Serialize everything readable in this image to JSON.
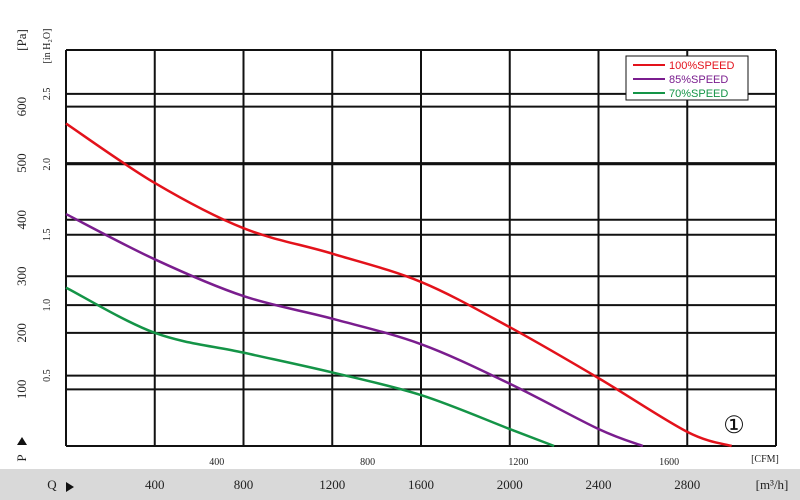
{
  "chart_data": {
    "type": "line",
    "x_primary": {
      "unit": "[m³/h]",
      "prefix_label": "Q",
      "range": [
        0,
        3200
      ],
      "ticks": [
        400,
        800,
        1200,
        1600,
        2000,
        2400,
        2800
      ]
    },
    "x_secondary": {
      "unit": "[CFM]",
      "ticks": [
        400,
        800,
        1200,
        1600
      ]
    },
    "y_primary": {
      "unit": "[Pa]",
      "prefix_label": "P",
      "range": [
        0,
        700
      ],
      "ticks": [
        100,
        200,
        300,
        400,
        500,
        600
      ]
    },
    "y_secondary": {
      "unit": "[in H₂O]",
      "ticks": [
        "0.5",
        "1.0",
        "1.5",
        "2.0",
        "2.5"
      ],
      "tick_values_pa": [
        124.5,
        249,
        373.5,
        498,
        622.5
      ]
    },
    "grid": true,
    "legend_position": "top-right",
    "series": [
      {
        "name": "100%SPEED",
        "color": "#e3121b",
        "x": [
          0,
          400,
          800,
          1200,
          1600,
          2000,
          2400,
          2800,
          3000
        ],
        "y": [
          570,
          465,
          385,
          340,
          290,
          210,
          120,
          25,
          0
        ]
      },
      {
        "name": "85%SPEED",
        "color": "#7a1d8e",
        "x": [
          0,
          400,
          800,
          1200,
          1600,
          2000,
          2400,
          2600
        ],
        "y": [
          410,
          330,
          265,
          225,
          180,
          110,
          30,
          0
        ]
      },
      {
        "name": "70%SPEED",
        "color": "#149447",
        "x": [
          0,
          400,
          800,
          1200,
          1600,
          2000,
          2200
        ],
        "y": [
          280,
          200,
          165,
          130,
          90,
          30,
          0
        ]
      }
    ],
    "annotation": "①"
  }
}
